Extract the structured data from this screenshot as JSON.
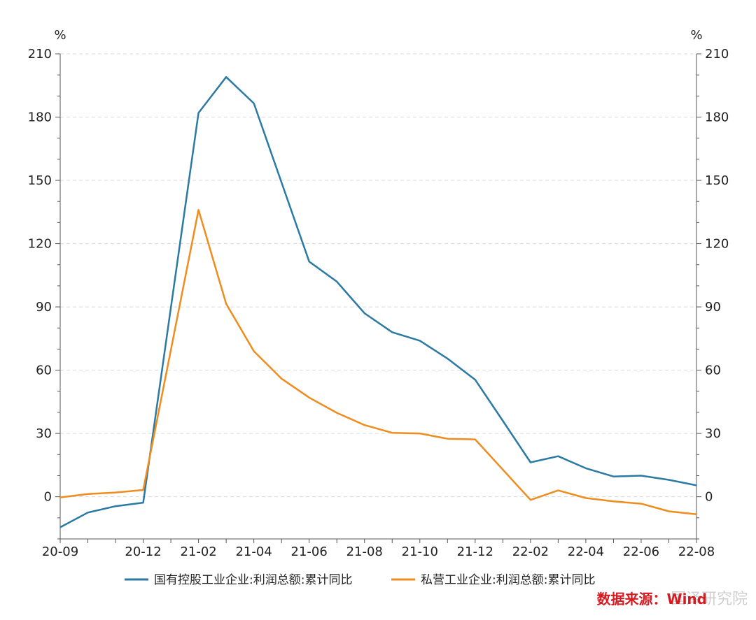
{
  "chart_data": {
    "type": "line",
    "left_unit": "%",
    "right_unit": "%",
    "ylim": [
      -20,
      210
    ],
    "y_ticks": [
      0,
      30,
      60,
      90,
      120,
      150,
      180,
      210
    ],
    "x": [
      "20-09",
      "20-10",
      "20-11",
      "20-12",
      "21-01",
      "21-02",
      "21-03",
      "21-04",
      "21-05",
      "21-06",
      "21-07",
      "21-08",
      "21-09",
      "21-10",
      "21-11",
      "21-12",
      "22-01",
      "22-02",
      "22-03",
      "22-04",
      "22-05",
      "22-06",
      "22-07",
      "22-08"
    ],
    "x_tick_labels": [
      {
        "index": 0,
        "label": "20-09"
      },
      {
        "index": 3,
        "label": "20-12"
      },
      {
        "index": 5,
        "label": "21-02"
      },
      {
        "index": 7,
        "label": "21-04"
      },
      {
        "index": 9,
        "label": "21-06"
      },
      {
        "index": 11,
        "label": "21-08"
      },
      {
        "index": 13,
        "label": "21-10"
      },
      {
        "index": 15,
        "label": "21-12"
      },
      {
        "index": 17,
        "label": "22-02"
      },
      {
        "index": 19,
        "label": "22-04"
      },
      {
        "index": 21,
        "label": "22-06"
      },
      {
        "index": 23,
        "label": "22-08"
      }
    ],
    "grid": "horizontal-dashed",
    "legend_position": "bottom",
    "series": [
      {
        "name": "国有控股工业企业:利润总额:累计同比",
        "color": "#2a7aa3",
        "values": [
          -14.5,
          -7.5,
          -4.5,
          -2.8,
          null,
          182,
          199,
          186.5,
          149,
          111.5,
          102,
          87,
          78,
          74,
          65.5,
          55.5,
          36,
          16.3,
          19.2,
          13.5,
          9.6,
          10,
          8,
          5.4
        ]
      },
      {
        "name": "私营工业企业:利润总额:累计同比",
        "color": "#f08c1e",
        "values": [
          -0.3,
          1.3,
          2,
          3.2,
          null,
          136,
          91.5,
          69,
          56,
          47,
          39.8,
          34,
          30.3,
          30,
          27.5,
          27.2,
          null,
          -1.5,
          3,
          -0.6,
          -2.2,
          -3.3,
          -6.9,
          -8.3
        ]
      }
    ],
    "source_text": "数据来源：Wind",
    "watermark_text": "国泽研究院"
  }
}
